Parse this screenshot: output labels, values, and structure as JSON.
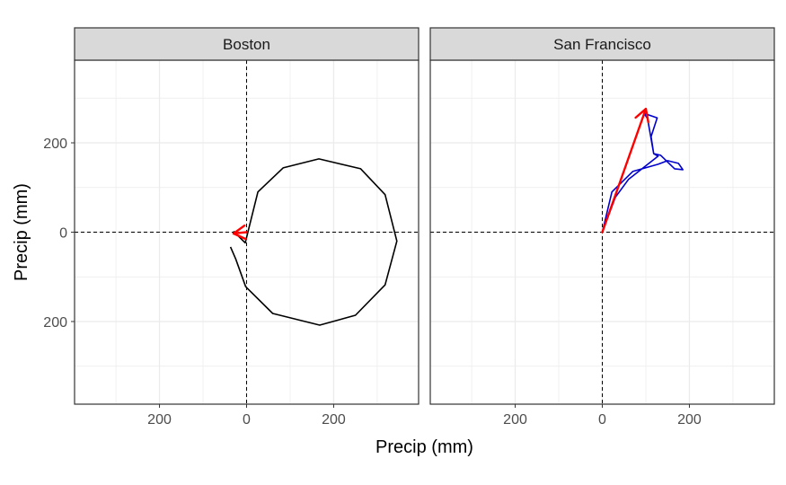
{
  "chart_data": {
    "type": "line",
    "xlabel": "Precip (mm)",
    "ylabel": "Precip (mm)",
    "xlim": [
      -395,
      395
    ],
    "ylim": [
      -385,
      385
    ],
    "x_ticks": [
      -200,
      0,
      200
    ],
    "x_tick_labels": [
      "200",
      "0",
      "200"
    ],
    "y_ticks": [
      -200,
      0,
      200
    ],
    "y_tick_labels": [
      "200",
      "0",
      "200"
    ],
    "grid": true,
    "colors": {
      "boston_path": "#000000",
      "sf_path": "#0000cd",
      "resultant": "#ff0000",
      "strip_bg": "#d9d9d9",
      "grid": "#ebebeb"
    },
    "panels": [
      {
        "name": "Boston",
        "path_color": "#000000",
        "path": [
          [
            -37,
            -33
          ],
          [
            -25,
            -60
          ],
          [
            -2,
            -122
          ],
          [
            60,
            -182
          ],
          [
            168,
            -208
          ],
          [
            250,
            -186
          ],
          [
            318,
            -118
          ],
          [
            345,
            -20
          ],
          [
            318,
            84
          ],
          [
            262,
            142
          ],
          [
            166,
            164
          ],
          [
            84,
            144
          ],
          [
            26,
            90
          ],
          [
            -3,
            -24
          ],
          [
            -30,
            2
          ]
        ],
        "resultant": {
          "x0": 0,
          "y0": 0,
          "x1": -30,
          "y1": -3
        }
      },
      {
        "name": "San Francisco",
        "path_color": "#0000cd",
        "path": [
          [
            0,
            0
          ],
          [
            22,
            90
          ],
          [
            70,
            136
          ],
          [
            128,
            152
          ],
          [
            150,
            160
          ],
          [
            175,
            154
          ],
          [
            185,
            140
          ],
          [
            166,
            142
          ],
          [
            134,
            172
          ],
          [
            118,
            176
          ],
          [
            104,
            254
          ],
          [
            96,
            266
          ],
          [
            126,
            256
          ],
          [
            112,
            214
          ],
          [
            118,
            176
          ],
          [
            128,
            170
          ],
          [
            60,
            118
          ],
          [
            30,
            78
          ],
          [
            0,
            0
          ]
        ],
        "resultant": {
          "x0": 0,
          "y0": 0,
          "x1": 100,
          "y1": 276
        }
      }
    ]
  }
}
